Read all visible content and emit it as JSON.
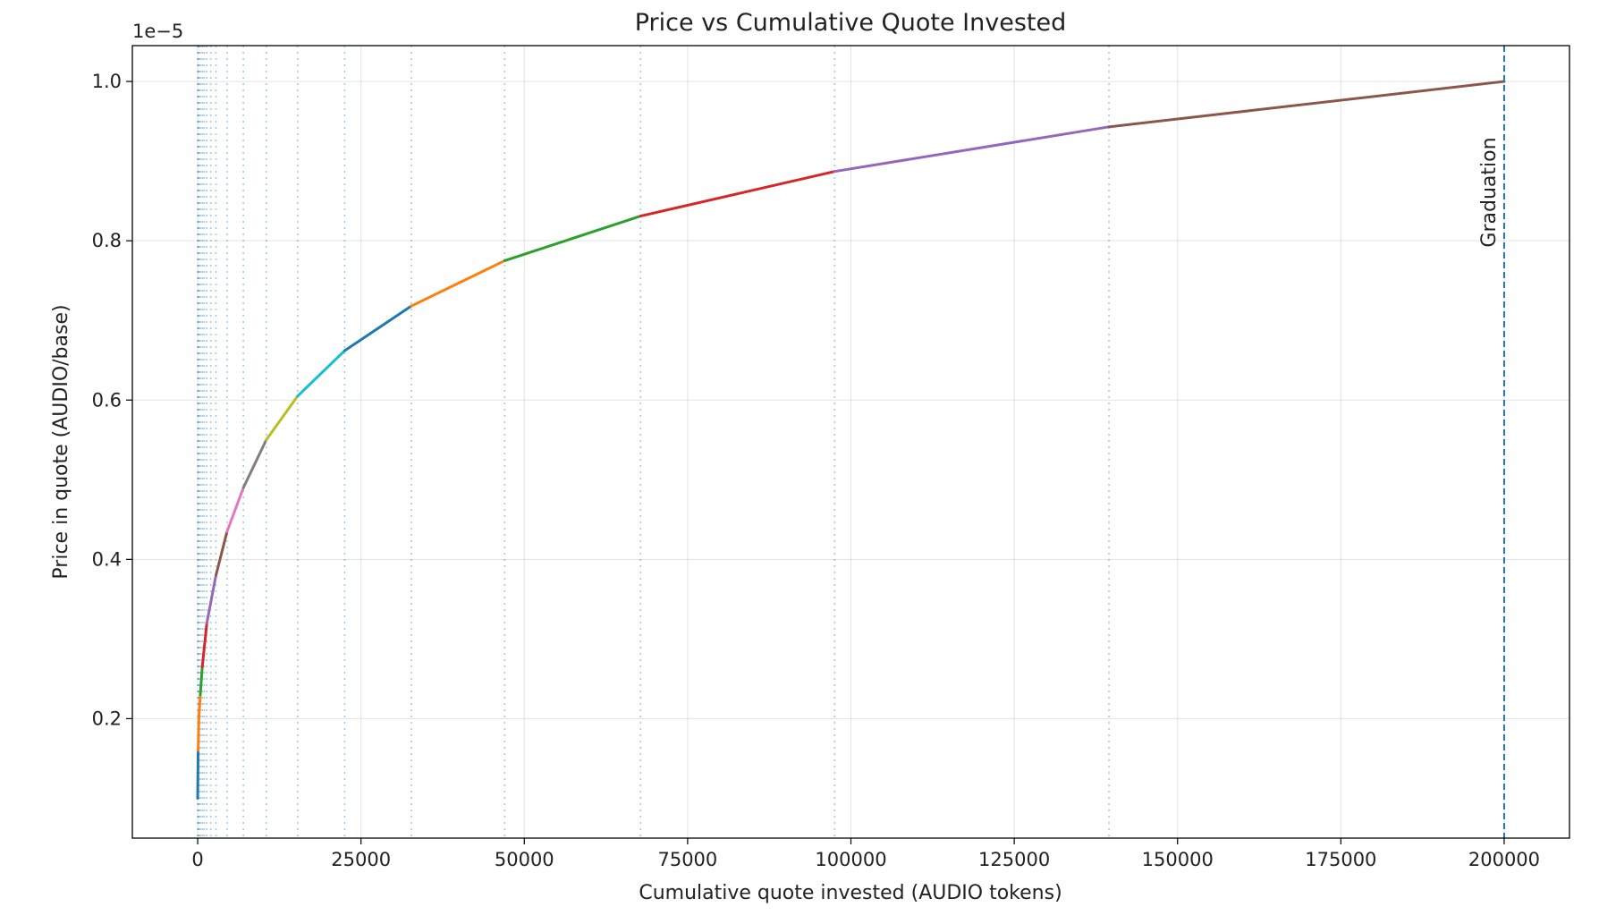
{
  "chart_data": {
    "type": "line",
    "title": "Price vs Cumulative Quote Invested",
    "xlabel": "Cumulative quote invested (AUDIO tokens)",
    "ylabel": "Price in quote (AUDIO/base)",
    "y_offset_label": "1e−5",
    "xlim": [
      -10000,
      210000
    ],
    "ylim": [
      0.05,
      1.045
    ],
    "y_scale_exponent": -5,
    "x_ticks": [
      0,
      25000,
      50000,
      75000,
      100000,
      125000,
      150000,
      175000,
      200000
    ],
    "x_tick_labels": [
      "0",
      "25000",
      "50000",
      "75000",
      "100000",
      "125000",
      "150000",
      "175000",
      "200000"
    ],
    "y_ticks": [
      0.2,
      0.4,
      0.6,
      0.8,
      1.0
    ],
    "y_tick_labels": [
      "0.2",
      "0.4",
      "0.6",
      "0.8",
      "1.0"
    ],
    "grid": true,
    "points": [
      [
        0,
        0.1
      ],
      [
        70,
        0.16
      ],
      [
        180,
        0.2
      ],
      [
        400,
        0.23
      ],
      [
        700,
        0.265
      ],
      [
        1400,
        0.32
      ],
      [
        2800,
        0.38
      ],
      [
        4500,
        0.435
      ],
      [
        7000,
        0.49
      ],
      [
        10500,
        0.55
      ],
      [
        15300,
        0.605
      ],
      [
        22500,
        0.662
      ],
      [
        32700,
        0.718
      ],
      [
        47000,
        0.775
      ],
      [
        67800,
        0.831
      ],
      [
        97500,
        0.887
      ],
      [
        139500,
        0.943
      ],
      [
        200000,
        1.0
      ]
    ],
    "segment_colors": [
      "#1f77b4",
      "#ff7f0e",
      "#ff7f0e",
      "#2ca02c",
      "#d62728",
      "#9467bd",
      "#8c564b",
      "#e377c2",
      "#7f7f7f",
      "#bcbd22",
      "#17becf",
      "#1f77b4",
      "#ff7f0e",
      "#2ca02c",
      "#d62728",
      "#9467bd",
      "#8c564b"
    ],
    "boundary_lines_x": [
      0,
      70,
      180,
      400,
      700,
      1000,
      1400,
      2000,
      2800,
      4500,
      7000,
      10500,
      15300,
      22500,
      32700,
      47000,
      67800,
      97500,
      139500
    ],
    "boundary_line_color": "#1f77b4",
    "graduation": {
      "x": 200000,
      "label": "Graduation",
      "color": "#1f77b4"
    }
  }
}
